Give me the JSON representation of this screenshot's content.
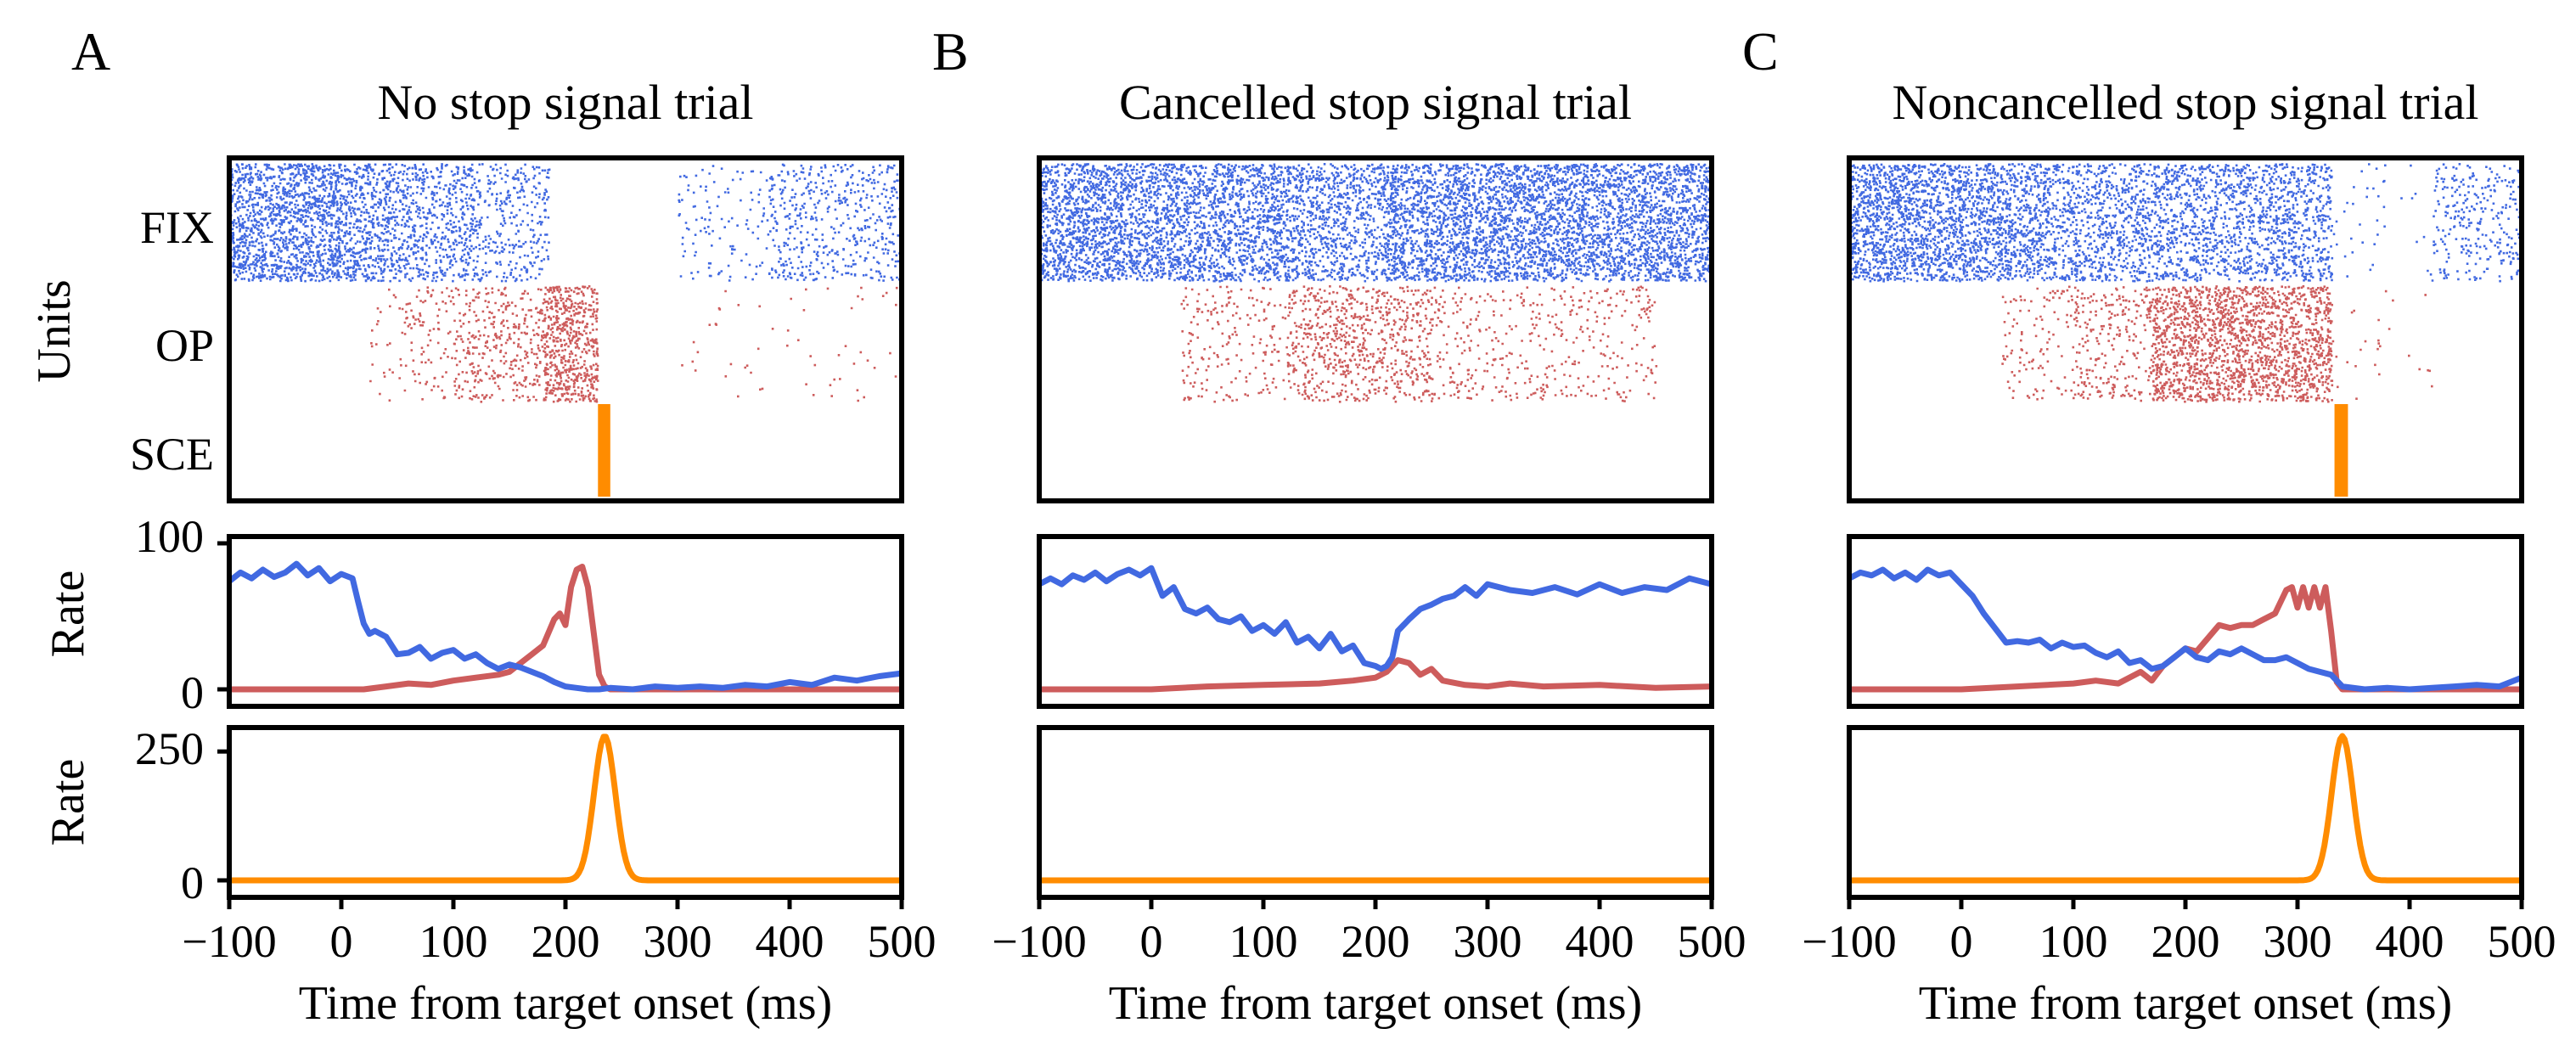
{
  "colors": {
    "fix": "#4169E1",
    "op": "#CD5C5C",
    "sce": "#FF8C00",
    "frame": "#000000"
  },
  "shared": {
    "units_label": "Units",
    "rate_label": "Rate",
    "xlabel": "Time from target onset (ms)",
    "xlim": [
      -100,
      500
    ],
    "xticks": [
      "−100",
      "0",
      "100",
      "200",
      "300",
      "400",
      "500"
    ],
    "unit_names": [
      "FIX",
      "OP",
      "SCE"
    ],
    "rate_yticks": [
      "100",
      "0"
    ],
    "sce_yticks": [
      "250",
      "0"
    ]
  },
  "chart_data": [
    {
      "type": "scatter",
      "panel": "A",
      "title": "No stop signal trial",
      "raster": {
        "FIX": {
          "segments": [
            [
              -100,
              0,
              0.95
            ],
            [
              0,
              40,
              0.75
            ],
            [
              40,
              120,
              0.55
            ],
            [
              120,
              185,
              0.32
            ],
            [
              300,
              380,
              0.1
            ],
            [
              380,
              500,
              0.28
            ]
          ]
        },
        "OP": {
          "segments": [
            [
              25,
              50,
              0.06
            ],
            [
              50,
              100,
              0.14
            ],
            [
              100,
              180,
              0.3
            ],
            [
              180,
              228,
              0.85
            ],
            [
              300,
              500,
              0.02
            ]
          ]
        },
        "SCE": {
          "burst": [
            229,
            240
          ]
        }
      },
      "rate": {
        "ylim": [
          0,
          100
        ],
        "FIX": {
          "x": [
            -100,
            -90,
            -80,
            -70,
            -60,
            -50,
            -40,
            -30,
            -20,
            -10,
            0,
            10,
            15,
            20,
            25,
            30,
            40,
            50,
            60,
            70,
            80,
            90,
            100,
            110,
            120,
            130,
            140,
            150,
            160,
            170,
            180,
            190,
            200,
            210,
            220,
            230,
            240,
            260,
            280,
            300,
            320,
            340,
            360,
            380,
            400,
            420,
            440,
            460,
            480,
            500
          ],
          "y": [
            74,
            80,
            76,
            82,
            77,
            80,
            86,
            78,
            83,
            74,
            79,
            76,
            60,
            45,
            38,
            40,
            36,
            24,
            25,
            29,
            21,
            25,
            27,
            21,
            24,
            18,
            14,
            17,
            15,
            12,
            9,
            5,
            2,
            1,
            0,
            0,
            1,
            0,
            2,
            1,
            2,
            1,
            3,
            2,
            5,
            3,
            8,
            6,
            9,
            11
          ]
        },
        "OP": {
          "x": [
            -100,
            -50,
            0,
            20,
            40,
            60,
            80,
            100,
            120,
            140,
            150,
            160,
            170,
            180,
            190,
            195,
            200,
            205,
            210,
            215,
            220,
            225,
            230,
            235,
            240,
            260,
            300,
            400,
            500
          ],
          "y": [
            0,
            0,
            0,
            0,
            2,
            4,
            3,
            6,
            8,
            10,
            12,
            18,
            24,
            30,
            48,
            52,
            44,
            70,
            82,
            84,
            70,
            40,
            10,
            2,
            0,
            0,
            0,
            0,
            0
          ]
        }
      },
      "sce": {
        "ylim": [
          0,
          280
        ],
        "peak_x": 235,
        "peak_y": 280,
        "width_sd": 9.5
      }
    },
    {
      "type": "scatter",
      "panel": "B",
      "title": "Cancelled stop signal trial",
      "raster": {
        "FIX": {
          "segments": [
            [
              -100,
              20,
              0.95
            ],
            [
              20,
              130,
              0.85
            ],
            [
              130,
              210,
              0.65
            ],
            [
              210,
              500,
              0.95
            ]
          ]
        },
        "OP": {
          "segments": [
            [
              25,
              120,
              0.14
            ],
            [
              120,
              250,
              0.38
            ],
            [
              250,
              450,
              0.14
            ]
          ]
        },
        "SCE": {
          "burst": null
        }
      },
      "rate": {
        "ylim": [
          0,
          100
        ],
        "FIX": {
          "x": [
            -100,
            -90,
            -80,
            -70,
            -60,
            -50,
            -40,
            -30,
            -20,
            -10,
            0,
            10,
            20,
            30,
            40,
            50,
            60,
            70,
            80,
            90,
            100,
            110,
            120,
            130,
            140,
            150,
            160,
            170,
            180,
            190,
            200,
            205,
            210,
            215,
            220,
            230,
            240,
            250,
            260,
            270,
            280,
            290,
            300,
            320,
            340,
            360,
            380,
            400,
            420,
            440,
            460,
            480,
            500
          ],
          "y": [
            72,
            76,
            72,
            78,
            75,
            80,
            74,
            79,
            82,
            78,
            83,
            64,
            70,
            55,
            52,
            56,
            48,
            46,
            50,
            40,
            44,
            38,
            46,
            32,
            36,
            28,
            38,
            26,
            30,
            18,
            16,
            14,
            16,
            22,
            40,
            48,
            55,
            58,
            62,
            64,
            70,
            64,
            72,
            68,
            66,
            70,
            65,
            72,
            66,
            70,
            68,
            76,
            72
          ]
        },
        "OP": {
          "x": [
            -100,
            0,
            50,
            100,
            150,
            180,
            200,
            210,
            220,
            230,
            240,
            250,
            260,
            280,
            300,
            320,
            350,
            400,
            450,
            500
          ],
          "y": [
            0,
            0,
            2,
            3,
            4,
            6,
            8,
            12,
            20,
            18,
            10,
            14,
            6,
            3,
            2,
            4,
            2,
            3,
            1,
            2
          ]
        }
      },
      "sce": {
        "ylim": [
          0,
          280
        ],
        "peak_x": null,
        "peak_y": 0,
        "width_sd": 0
      }
    },
    {
      "type": "scatter",
      "panel": "C",
      "title": "Noncancelled stop signal trial",
      "raster": {
        "FIX": {
          "segments": [
            [
              -100,
              0,
              0.95
            ],
            [
              0,
              70,
              0.8
            ],
            [
              70,
              330,
              0.6
            ],
            [
              330,
              420,
              0.03
            ],
            [
              420,
              500,
              0.25
            ]
          ]
        },
        "OP": {
          "segments": [
            [
              35,
              100,
              0.12
            ],
            [
              100,
              170,
              0.25
            ],
            [
              170,
              330,
              0.8
            ],
            [
              330,
              420,
              0.02
            ]
          ]
        },
        "SCE": {
          "burst": [
            333,
            345
          ]
        }
      },
      "rate": {
        "ylim": [
          0,
          100
        ],
        "FIX": {
          "x": [
            -100,
            -90,
            -80,
            -70,
            -60,
            -50,
            -40,
            -30,
            -20,
            -10,
            0,
            10,
            20,
            30,
            40,
            50,
            60,
            70,
            80,
            90,
            100,
            110,
            120,
            130,
            140,
            150,
            160,
            170,
            180,
            190,
            200,
            210,
            220,
            230,
            240,
            250,
            260,
            270,
            280,
            290,
            300,
            310,
            320,
            330,
            340,
            360,
            380,
            400,
            420,
            440,
            460,
            480,
            500
          ],
          "y": [
            76,
            80,
            78,
            82,
            76,
            80,
            75,
            82,
            78,
            80,
            72,
            64,
            52,
            42,
            32,
            33,
            32,
            34,
            28,
            32,
            29,
            30,
            25,
            22,
            26,
            18,
            20,
            14,
            16,
            22,
            28,
            22,
            20,
            26,
            24,
            28,
            24,
            20,
            20,
            22,
            18,
            14,
            12,
            10,
            2,
            0,
            1,
            0,
            1,
            2,
            3,
            2,
            8
          ]
        },
        "OP": {
          "x": [
            -100,
            0,
            50,
            100,
            120,
            140,
            160,
            170,
            180,
            190,
            200,
            210,
            220,
            230,
            240,
            250,
            260,
            270,
            280,
            290,
            295,
            300,
            305,
            310,
            315,
            320,
            325,
            330,
            335,
            340,
            400,
            500
          ],
          "y": [
            0,
            0,
            2,
            4,
            6,
            4,
            12,
            6,
            16,
            22,
            28,
            26,
            35,
            44,
            42,
            44,
            44,
            48,
            52,
            68,
            70,
            56,
            70,
            56,
            70,
            56,
            70,
            40,
            5,
            0,
            0,
            0
          ]
        }
      },
      "sce": {
        "ylim": [
          0,
          280
        ],
        "peak_x": 340,
        "peak_y": 280,
        "width_sd": 9.5
      }
    }
  ]
}
